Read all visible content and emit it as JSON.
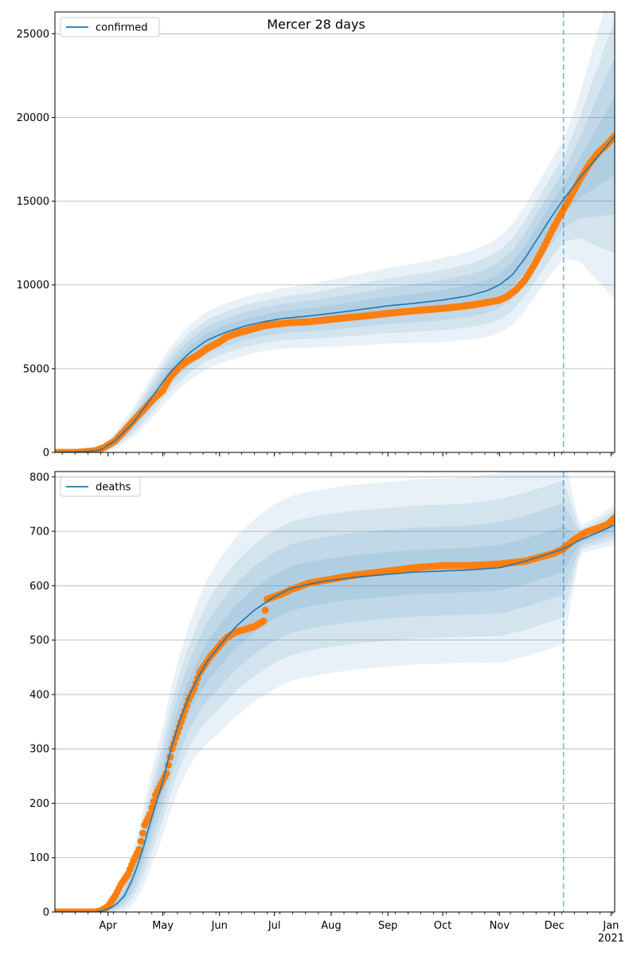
{
  "title": "Mercer 28 days",
  "colors": {
    "model": "#1f77b4",
    "observed": "#ff7f0e",
    "band": "#1f77b4",
    "grid": "#b0b0b0",
    "forecast_line": "#1f77b4"
  },
  "x_axis": {
    "range": [
      "2020-03-03",
      "2021-01-03"
    ],
    "ticks": [
      {
        "date": "2020-04-01",
        "label": "Apr"
      },
      {
        "date": "2020-05-01",
        "label": "May"
      },
      {
        "date": "2020-06-01",
        "label": "Jun"
      },
      {
        "date": "2020-07-01",
        "label": "Jul"
      },
      {
        "date": "2020-08-01",
        "label": "Aug"
      },
      {
        "date": "2020-09-01",
        "label": "Sep"
      },
      {
        "date": "2020-10-01",
        "label": "Oct"
      },
      {
        "date": "2020-11-01",
        "label": "Nov"
      },
      {
        "date": "2020-12-01",
        "label": "Dec"
      },
      {
        "date": "2021-01-01",
        "label": "Jan"
      }
    ],
    "year_label": "2021",
    "forecast_start": "2020-12-06"
  },
  "chart_data": [
    {
      "type": "line",
      "legend": "confirmed",
      "legend_position": "top-left",
      "grid": "horizontal",
      "ylim": [
        0,
        26300
      ],
      "yticks": [
        0,
        5000,
        10000,
        15000,
        20000,
        25000
      ],
      "model": {
        "x": [
          "2020-03-03",
          "2020-03-20",
          "2020-03-28",
          "2020-04-05",
          "2020-04-15",
          "2020-04-25",
          "2020-05-05",
          "2020-05-15",
          "2020-05-25",
          "2020-06-05",
          "2020-06-15",
          "2020-06-25",
          "2020-07-05",
          "2020-07-20",
          "2020-08-01",
          "2020-08-15",
          "2020-09-01",
          "2020-09-15",
          "2020-10-01",
          "2020-10-15",
          "2020-10-25",
          "2020-11-01",
          "2020-11-08",
          "2020-11-15",
          "2020-11-22",
          "2020-11-29",
          "2020-12-06",
          "2020-12-15",
          "2020-12-25",
          "2021-01-03"
        ],
        "y": [
          0,
          50,
          150,
          700,
          1800,
          3300,
          4800,
          5900,
          6700,
          7200,
          7550,
          7800,
          7990,
          8150,
          8300,
          8500,
          8750,
          8900,
          9100,
          9350,
          9650,
          10000,
          10600,
          11600,
          12800,
          14000,
          15100,
          16400,
          17700,
          18900
        ],
        "sd": [
          0,
          30,
          80,
          200,
          350,
          500,
          600,
          650,
          680,
          690,
          700,
          700,
          720,
          760,
          800,
          850,
          900,
          950,
          1000,
          1050,
          1100,
          1150,
          1200,
          1250,
          1300,
          1350,
          1400,
          2000,
          3000,
          3900
        ]
      },
      "observed": {
        "x": [
          "2020-03-03",
          "2020-03-15",
          "2020-03-25",
          "2020-03-30",
          "2020-04-05",
          "2020-04-10",
          "2020-04-15",
          "2020-04-20",
          "2020-04-25",
          "2020-05-01",
          "2020-05-05",
          "2020-05-10",
          "2020-05-15",
          "2020-05-20",
          "2020-05-25",
          "2020-06-01",
          "2020-06-05",
          "2020-06-10",
          "2020-06-15",
          "2020-06-20",
          "2020-06-25",
          "2020-07-01",
          "2020-07-10",
          "2020-07-20",
          "2020-08-01",
          "2020-08-10",
          "2020-08-20",
          "2020-09-01",
          "2020-09-10",
          "2020-09-20",
          "2020-10-01",
          "2020-10-10",
          "2020-10-20",
          "2020-10-25",
          "2020-11-01",
          "2020-11-05",
          "2020-11-10",
          "2020-11-15",
          "2020-11-20",
          "2020-11-25",
          "2020-11-30",
          "2020-12-05",
          "2020-12-10",
          "2020-12-15",
          "2020-12-20",
          "2020-12-25",
          "2020-12-30",
          "2021-01-03"
        ],
        "y": [
          0,
          0,
          100,
          300,
          700,
          1300,
          1900,
          2500,
          3100,
          3700,
          4500,
          5100,
          5500,
          5800,
          6200,
          6600,
          6900,
          7100,
          7250,
          7400,
          7550,
          7650,
          7750,
          7800,
          7950,
          8050,
          8150,
          8300,
          8400,
          8500,
          8600,
          8700,
          8850,
          8950,
          9100,
          9300,
          9700,
          10300,
          11200,
          12200,
          13300,
          14300,
          15300,
          16300,
          17200,
          17900,
          18400,
          18900
        ]
      }
    },
    {
      "type": "line",
      "legend": "deaths",
      "legend_position": "top-left",
      "grid": "horizontal",
      "ylim": [
        0,
        810
      ],
      "yticks": [
        0,
        100,
        200,
        300,
        400,
        500,
        600,
        700,
        800
      ],
      "model": {
        "x": [
          "2020-03-03",
          "2020-03-25",
          "2020-03-30",
          "2020-04-05",
          "2020-04-10",
          "2020-04-15",
          "2020-04-20",
          "2020-04-25",
          "2020-05-01",
          "2020-05-05",
          "2020-05-10",
          "2020-05-15",
          "2020-05-20",
          "2020-05-25",
          "2020-06-01",
          "2020-06-10",
          "2020-06-20",
          "2020-07-01",
          "2020-07-10",
          "2020-07-20",
          "2020-08-01",
          "2020-08-15",
          "2020-09-01",
          "2020-09-15",
          "2020-10-01",
          "2020-10-15",
          "2020-11-01",
          "2020-11-15",
          "2020-12-01",
          "2020-12-06",
          "2020-12-15",
          "2020-12-25",
          "2021-01-03"
        ],
        "y": [
          0,
          0,
          3,
          12,
          30,
          65,
          115,
          175,
          240,
          295,
          350,
          395,
          430,
          460,
          490,
          525,
          555,
          580,
          595,
          603,
          610,
          616,
          621,
          625,
          627,
          629,
          633,
          645,
          662,
          668,
          684,
          698,
          712
        ],
        "sd": [
          0,
          0,
          2,
          6,
          12,
          20,
          28,
          35,
          40,
          44,
          48,
          52,
          56,
          60,
          64,
          66,
          67,
          68,
          68,
          68,
          68,
          68,
          68,
          68,
          68,
          68,
          70,
          70,
          70,
          70,
          10,
          12,
          15
        ]
      },
      "observed": {
        "x": [
          "2020-03-03",
          "2020-03-25",
          "2020-03-28",
          "2020-04-01",
          "2020-04-05",
          "2020-04-08",
          "2020-04-12",
          "2020-04-15",
          "2020-04-18",
          "2020-04-21",
          "2020-04-24",
          "2020-04-27",
          "2020-04-30",
          "2020-05-03",
          "2020-05-06",
          "2020-05-09",
          "2020-05-12",
          "2020-05-15",
          "2020-05-18",
          "2020-05-21",
          "2020-05-24",
          "2020-05-27",
          "2020-06-01",
          "2020-06-05",
          "2020-06-10",
          "2020-06-15",
          "2020-06-20",
          "2020-06-25",
          "2020-06-27",
          "2020-07-01",
          "2020-07-05",
          "2020-07-10",
          "2020-07-20",
          "2020-08-01",
          "2020-08-15",
          "2020-09-01",
          "2020-09-15",
          "2020-10-01",
          "2020-10-15",
          "2020-11-01",
          "2020-11-15",
          "2020-12-01",
          "2020-12-06",
          "2020-12-12",
          "2020-12-18",
          "2020-12-24",
          "2020-12-30",
          "2021-01-03"
        ],
        "y": [
          0,
          0,
          2,
          10,
          30,
          50,
          70,
          95,
          115,
          160,
          180,
          215,
          235,
          255,
          300,
          330,
          360,
          390,
          410,
          440,
          455,
          470,
          490,
          505,
          515,
          520,
          525,
          535,
          575,
          580,
          585,
          593,
          605,
          612,
          620,
          627,
          633,
          637,
          637,
          640,
          645,
          660,
          668,
          685,
          698,
          705,
          712,
          725
        ]
      }
    }
  ]
}
